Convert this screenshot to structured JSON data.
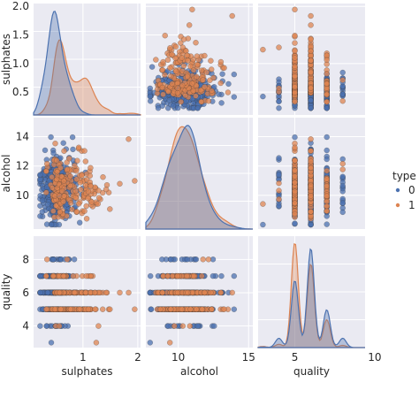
{
  "chart_data": {
    "type": "scatter",
    "variables": [
      "sulphates",
      "alcohol",
      "quality"
    ],
    "axis_labels": {
      "sulphates": "sulphates",
      "alcohol": "alcohol",
      "quality": "quality"
    },
    "x_ticks": {
      "sulphates": [
        "1",
        "2"
      ],
      "alcohol": [
        "10",
        "15"
      ],
      "quality": [
        "5",
        "10"
      ]
    },
    "y_ticks": {
      "sulphates": [
        "0.5",
        "1.0",
        "1.5",
        "2.0"
      ],
      "alcohol": [
        "10",
        "12",
        "14"
      ],
      "quality": [
        "4",
        "6",
        "8"
      ]
    },
    "legend": {
      "title": "type",
      "entries": [
        "0",
        "1"
      ],
      "placement": "right"
    },
    "colors": {
      "0": "#4c72b0",
      "1": "#dd8452",
      "panel_bg": "#eaeaf2",
      "grid": "#ffffff"
    },
    "series": [
      {
        "name": "0",
        "sulphates_range": [
          0.22,
          1.08
        ],
        "sulphates_center": 0.47,
        "alcohol_range": [
          8.0,
          14.2
        ],
        "alcohol_center": 10.4,
        "quality_values": [
          3,
          4,
          5,
          6,
          7,
          8,
          9
        ],
        "quality_weights": [
          0.005,
          0.035,
          0.3,
          0.45,
          0.18,
          0.035,
          0.002
        ]
      },
      {
        "name": "1",
        "sulphates_range": [
          0.33,
          2.0
        ],
        "sulphates_center": 0.66,
        "alcohol_range": [
          8.4,
          14.9
        ],
        "alcohol_center": 10.2,
        "quality_values": [
          3,
          4,
          5,
          6,
          7,
          8
        ],
        "quality_weights": [
          0.01,
          0.035,
          0.42,
          0.4,
          0.125,
          0.01
        ]
      }
    ],
    "ranges": {
      "sulphates": [
        0.1,
        2.05
      ],
      "alcohol": [
        7.7,
        15.3
      ],
      "quality": [
        2.7,
        9.4
      ]
    }
  }
}
